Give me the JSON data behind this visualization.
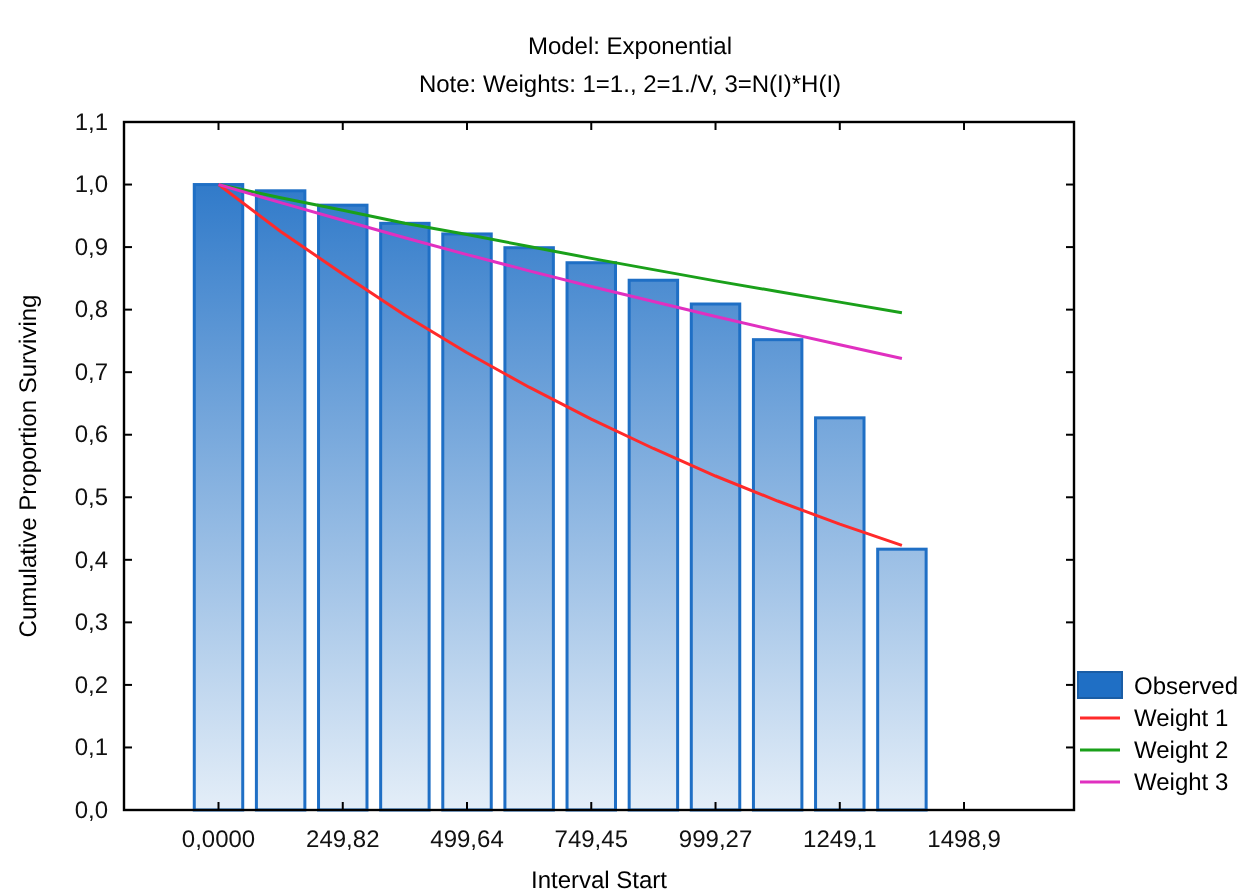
{
  "chart_data": {
    "type": "bar",
    "title": "Model: Exponential",
    "subtitle": "Note: Weights: 1=1., 2=1./V, 3=N(I)*H(I)",
    "xlabel": "Interval Start",
    "ylabel": "Cumulative Proportion Surviving",
    "x": [
      0,
      124.91,
      249.82,
      374.73,
      499.64,
      624.55,
      749.45,
      874.36,
      999.27,
      1124.2,
      1249.1,
      1374.0
    ],
    "series": [
      {
        "name": "Observed",
        "color": "#1f6fc5",
        "values": [
          1.0,
          0.99,
          0.967,
          0.938,
          0.921,
          0.899,
          0.875,
          0.847,
          0.809,
          0.752,
          0.627,
          0.417
        ]
      },
      {
        "name": "Weight 1",
        "type": "line",
        "color": "#ff2a2a",
        "values": [
          1.0,
          0.925,
          0.857,
          0.791,
          0.731,
          0.676,
          0.625,
          0.578,
          0.534,
          0.494,
          0.457,
          0.423
        ]
      },
      {
        "name": "Weight 2",
        "type": "line",
        "color": "#1aa01a",
        "values": [
          1.0,
          0.979,
          0.959,
          0.938,
          0.92,
          0.901,
          0.882,
          0.864,
          0.846,
          0.829,
          0.812,
          0.795
        ]
      },
      {
        "name": "Weight 3",
        "type": "line",
        "color": "#e030c0",
        "values": [
          1.0,
          0.971,
          0.943,
          0.915,
          0.888,
          0.862,
          0.837,
          0.813,
          0.789,
          0.766,
          0.744,
          0.722
        ]
      }
    ],
    "xlim": [
      -190,
      1720
    ],
    "xticks": [
      {
        "value": 0,
        "label": "0,0000"
      },
      {
        "value": 249.82,
        "label": "249,82"
      },
      {
        "value": 499.64,
        "label": "499,64"
      },
      {
        "value": 749.45,
        "label": "749,45"
      },
      {
        "value": 999.27,
        "label": "999,27"
      },
      {
        "value": 1249.1,
        "label": "1249,1"
      },
      {
        "value": 1498.9,
        "label": "1498,9"
      }
    ],
    "ylim": [
      0,
      1.1
    ],
    "yticks": [
      {
        "value": 0,
        "label": "0,0"
      },
      {
        "value": 0.1,
        "label": "0,1"
      },
      {
        "value": 0.2,
        "label": "0,2"
      },
      {
        "value": 0.3,
        "label": "0,3"
      },
      {
        "value": 0.4,
        "label": "0,4"
      },
      {
        "value": 0.5,
        "label": "0,5"
      },
      {
        "value": 0.6,
        "label": "0,6"
      },
      {
        "value": 0.7,
        "label": "0,7"
      },
      {
        "value": 0.8,
        "label": "0,8"
      },
      {
        "value": 0.9,
        "label": "0,9"
      },
      {
        "value": 1.0,
        "label": "1,0"
      },
      {
        "value": 1.1,
        "label": "1,1"
      }
    ],
    "legend": "bottom right",
    "grid": false,
    "marker": "none",
    "line_style": "solid"
  }
}
